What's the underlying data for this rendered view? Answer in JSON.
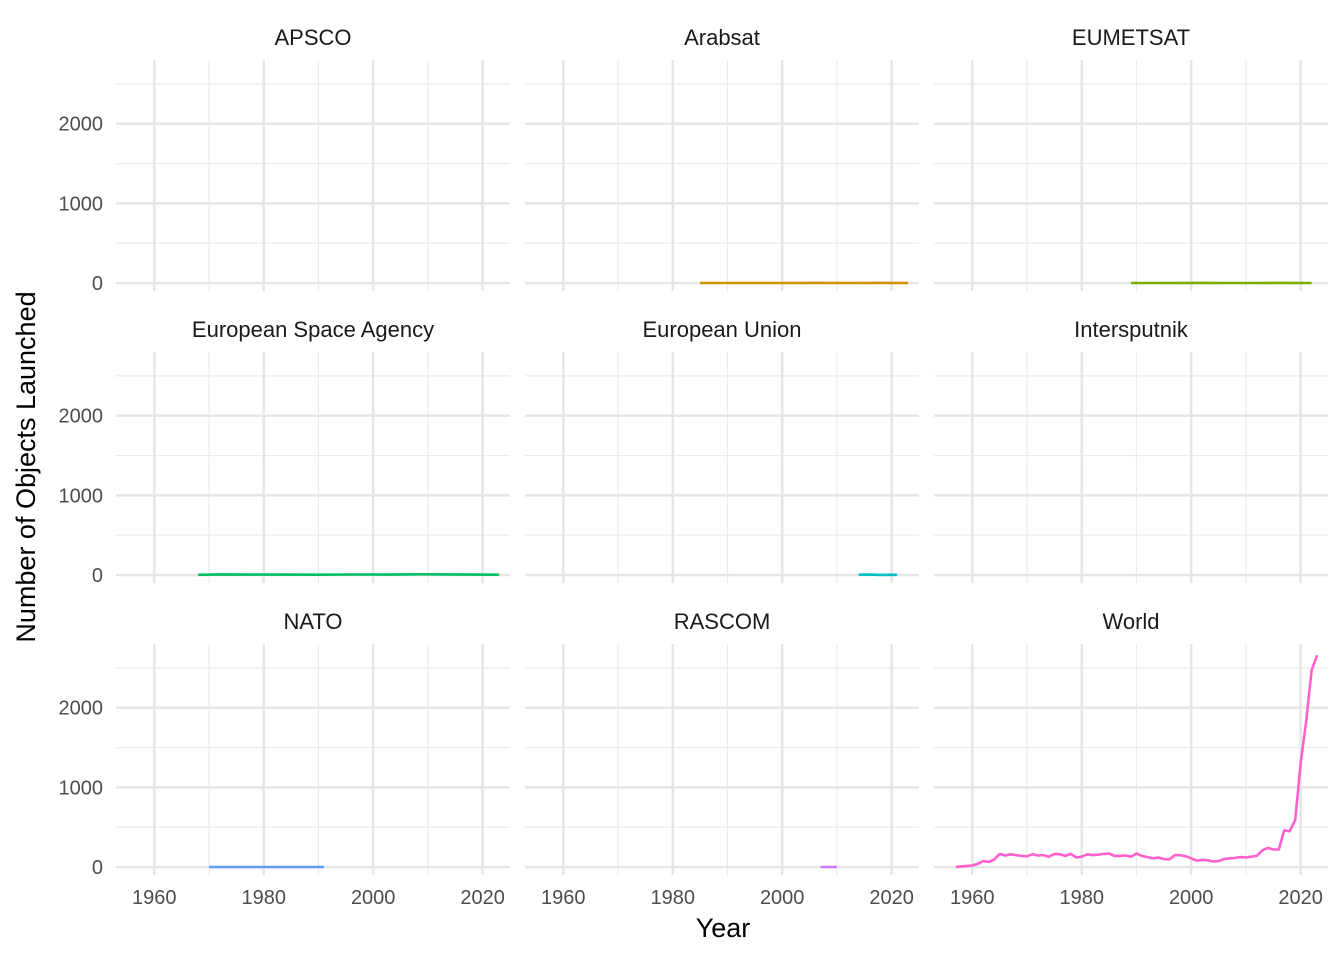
{
  "chart_data": {
    "type": "line",
    "layout": "facet-grid 3x3",
    "xlabel": "Year",
    "ylabel": "Number of Objects Launched",
    "xlim": [
      1953,
      2025
    ],
    "ylim": [
      -100,
      2800
    ],
    "x_ticks": [
      1960,
      1980,
      2000,
      2020
    ],
    "y_ticks": [
      0,
      1000,
      2000
    ],
    "grid": true,
    "legend": "none",
    "panels": [
      {
        "title": "APSCO",
        "color": "#F8766D",
        "series": {
          "x": [],
          "y": []
        }
      },
      {
        "title": "Arabsat",
        "color": "#CD9600",
        "series": {
          "x": [
            1985,
            1992,
            1999,
            2006,
            2012,
            2018,
            2023
          ],
          "y": [
            1,
            1,
            1,
            2,
            1,
            2,
            1
          ]
        }
      },
      {
        "title": "EUMETSAT",
        "color": "#7CAE00",
        "series": {
          "x": [
            1989,
            1995,
            2002,
            2006,
            2012,
            2017,
            2022
          ],
          "y": [
            1,
            1,
            2,
            1,
            1,
            2,
            1
          ]
        }
      },
      {
        "title": "European Space Agency",
        "color": "#00BE67",
        "series": {
          "x": [
            1968,
            1972,
            1977,
            1983,
            1990,
            1997,
            2003,
            2009,
            2013,
            2018,
            2023
          ],
          "y": [
            3,
            8,
            5,
            6,
            4,
            7,
            6,
            9,
            8,
            6,
            4
          ]
        }
      },
      {
        "title": "European Union",
        "color": "#00BFC4",
        "series": {
          "x": [
            2014,
            2016,
            2018,
            2021
          ],
          "y": [
            4,
            6,
            2,
            3
          ]
        }
      },
      {
        "title": "Intersputnik",
        "color": "#00A9FF",
        "series": {
          "x": [],
          "y": []
        }
      },
      {
        "title": "NATO",
        "color": "#619CFF",
        "series": {
          "x": [
            1970,
            1975,
            1980,
            1985,
            1991
          ],
          "y": [
            1,
            1,
            1,
            1,
            1
          ]
        }
      },
      {
        "title": "RASCOM",
        "color": "#C77CFF",
        "series": {
          "x": [
            2007,
            2010
          ],
          "y": [
            1,
            1
          ]
        }
      },
      {
        "title": "World",
        "color": "#FF61CC",
        "series": {
          "x": [
            1957,
            1958,
            1959,
            1960,
            1961,
            1962,
            1963,
            1964,
            1965,
            1966,
            1967,
            1968,
            1969,
            1970,
            1971,
            1972,
            1973,
            1974,
            1975,
            1976,
            1977,
            1978,
            1979,
            1980,
            1981,
            1982,
            1983,
            1984,
            1985,
            1986,
            1987,
            1988,
            1989,
            1990,
            1991,
            1992,
            1993,
            1994,
            1995,
            1996,
            1997,
            1998,
            1999,
            2000,
            2001,
            2002,
            2003,
            2004,
            2005,
            2006,
            2007,
            2008,
            2009,
            2010,
            2011,
            2012,
            2013,
            2014,
            2015,
            2016,
            2017,
            2018,
            2019,
            2020,
            2021,
            2022,
            2023
          ],
          "y": [
            2,
            8,
            14,
            19,
            40,
            75,
            65,
            95,
            165,
            145,
            160,
            150,
            140,
            135,
            160,
            145,
            150,
            130,
            165,
            160,
            140,
            165,
            120,
            130,
            160,
            150,
            155,
            165,
            170,
            140,
            140,
            145,
            130,
            170,
            140,
            125,
            110,
            120,
            100,
            95,
            150,
            150,
            135,
            110,
            80,
            90,
            85,
            70,
            75,
            100,
            110,
            115,
            125,
            120,
            130,
            140,
            210,
            240,
            220,
            220,
            460,
            450,
            590,
            1300,
            1820,
            2470,
            2660
          ]
        }
      }
    ]
  }
}
